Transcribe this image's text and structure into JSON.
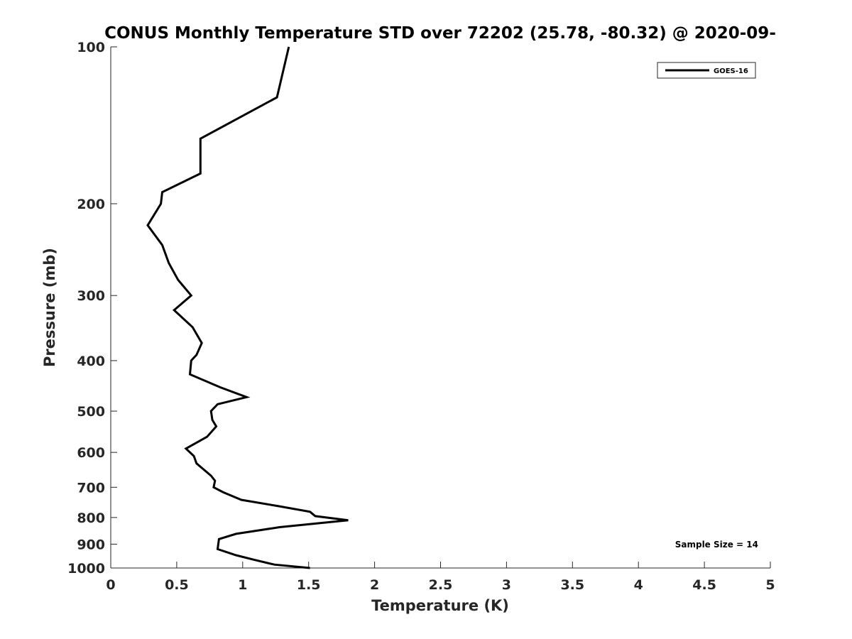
{
  "chart_data": {
    "type": "line",
    "title": "CONUS Monthly Temperature STD over 72202 (25.78, -80.32) @ 2020-09-",
    "xlabel": "Temperature (K)",
    "ylabel": "Pressure (mb)",
    "xlim": [
      0,
      5
    ],
    "ylim": [
      100,
      1000
    ],
    "yscale": "log",
    "yaxis_reversed": true,
    "xticks": [
      0,
      0.5,
      1,
      1.5,
      2,
      2.5,
      3,
      3.5,
      4,
      4.5,
      5
    ],
    "xtick_labels": [
      "0",
      "0.5",
      "1",
      "1.5",
      "2",
      "2.5",
      "3",
      "3.5",
      "4",
      "4.5",
      "5"
    ],
    "yticks": [
      100,
      200,
      300,
      400,
      500,
      600,
      700,
      800,
      900,
      1000
    ],
    "ytick_labels": [
      "100",
      "200",
      "300",
      "400",
      "500",
      "600",
      "700",
      "800",
      "900",
      "1000"
    ],
    "grid": false,
    "legend_position": "top-right",
    "series": [
      {
        "name": "GOES-16",
        "color": "#000000",
        "points": [
          [
            1.35,
            100
          ],
          [
            1.26,
            125
          ],
          [
            0.68,
            150
          ],
          [
            0.68,
            175
          ],
          [
            0.39,
            190
          ],
          [
            0.38,
            200
          ],
          [
            0.28,
            220
          ],
          [
            0.39,
            240
          ],
          [
            0.44,
            260
          ],
          [
            0.51,
            280
          ],
          [
            0.61,
            300
          ],
          [
            0.48,
            320
          ],
          [
            0.62,
            345
          ],
          [
            0.69,
            370
          ],
          [
            0.65,
            390
          ],
          [
            0.61,
            400
          ],
          [
            0.6,
            425
          ],
          [
            0.83,
            450
          ],
          [
            1.03,
            470
          ],
          [
            0.81,
            485
          ],
          [
            0.76,
            500
          ],
          [
            0.77,
            520
          ],
          [
            0.8,
            535
          ],
          [
            0.73,
            560
          ],
          [
            0.57,
            590
          ],
          [
            0.63,
            610
          ],
          [
            0.65,
            630
          ],
          [
            0.76,
            665
          ],
          [
            0.79,
            680
          ],
          [
            0.78,
            700
          ],
          [
            0.85,
            715
          ],
          [
            0.99,
            740
          ],
          [
            1.26,
            760
          ],
          [
            1.51,
            780
          ],
          [
            1.55,
            795
          ],
          [
            1.8,
            810
          ],
          [
            1.28,
            835
          ],
          [
            0.95,
            860
          ],
          [
            0.82,
            880
          ],
          [
            0.81,
            920
          ],
          [
            0.95,
            945
          ],
          [
            1.09,
            965
          ],
          [
            1.24,
            985
          ],
          [
            1.51,
            1000
          ]
        ]
      }
    ],
    "annotations": [
      "Sample Size = 14"
    ]
  }
}
